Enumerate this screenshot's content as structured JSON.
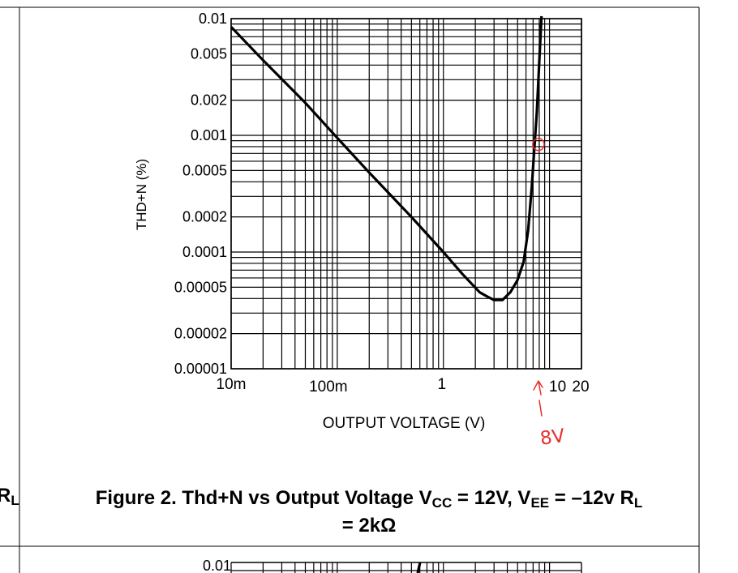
{
  "chart_data": {
    "type": "line",
    "scale": "log-log",
    "xlabel": "OUTPUT VOLTAGE (V)",
    "ylabel": "THD+N (%)",
    "xlim": [
      0.01,
      20
    ],
    "ylim": [
      1e-05,
      0.01
    ],
    "x_ticks": [
      {
        "value": 0.01,
        "label": "10m"
      },
      {
        "value": 0.1,
        "label": "100m"
      },
      {
        "value": 1,
        "label": "1"
      },
      {
        "value": 10,
        "label": "10"
      },
      {
        "value": 20,
        "label": "20"
      }
    ],
    "y_ticks": [
      {
        "value": 0.01,
        "label": "0.01"
      },
      {
        "value": 0.005,
        "label": "0.005"
      },
      {
        "value": 0.002,
        "label": "0.002"
      },
      {
        "value": 0.001,
        "label": "0.001"
      },
      {
        "value": 0.0005,
        "label": "0.0005"
      },
      {
        "value": 0.0002,
        "label": "0.0002"
      },
      {
        "value": 0.0001,
        "label": "0.0001"
      },
      {
        "value": 5e-05,
        "label": "0.00005"
      },
      {
        "value": 2e-05,
        "label": "0.00002"
      },
      {
        "value": 1e-05,
        "label": "0.00001"
      }
    ],
    "grid": true,
    "series": [
      {
        "name": "THD+N",
        "x": [
          0.01,
          0.02,
          0.05,
          0.1,
          0.2,
          0.5,
          1,
          1.5,
          2.2,
          2.6,
          3.0,
          3.6,
          4.3,
          5.0,
          5.7,
          6.3,
          6.8,
          7.2,
          7.6,
          8.0,
          8.4
        ],
        "y": [
          0.0085,
          0.0044,
          0.0019,
          0.00095,
          0.00048,
          0.0002,
          0.0001,
          6.52e-05,
          4.52e-05,
          4.15e-05,
          3.88e-05,
          3.88e-05,
          4.55e-05,
          5.77e-05,
          8.27e-05,
          0.000155,
          0.00036,
          0.00078,
          0.0016,
          0.0042,
          0.0105
        ]
      }
    ],
    "annotations": [
      {
        "text": "8V",
        "x": 8,
        "y": 0.00085,
        "color": "#e8302a",
        "note": "handwritten circle on curve with arrow to x axis"
      }
    ],
    "title": "Figure 2. Thd+N vs Output Voltage V_CC = 12V, V_EE = –12v R_L = 2kΩ"
  },
  "caption": {
    "prefix": "Figure 2. Thd+N vs Output Voltage V",
    "vcc_sub": "CC",
    "mid1": " = 12V, V",
    "vee_sub": "EE",
    "mid2": " = –12v R",
    "rl_sub": "L",
    "suffix": " = 2kΩ"
  },
  "edge_fragment": {
    "main": "R",
    "sub": "L"
  },
  "bottom_chart_top_label": "0.01",
  "colors": {
    "annotation": "#e8302a",
    "line": "#000000",
    "grid": "#000000"
  }
}
